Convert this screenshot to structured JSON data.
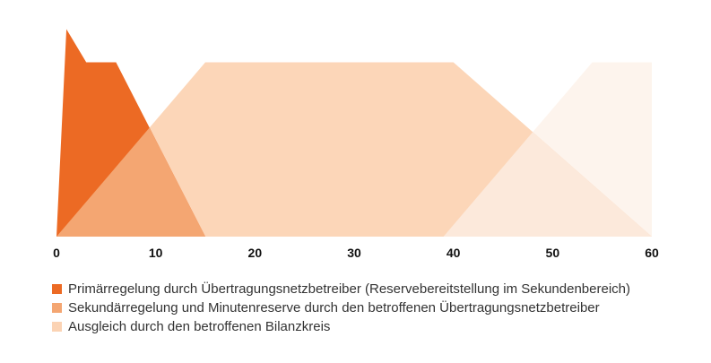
{
  "chart_data": {
    "type": "area",
    "title": "",
    "xlabel": "",
    "ylabel": "",
    "xlim": [
      0,
      60
    ],
    "x_ticks": [
      "0",
      "10",
      "20",
      "30",
      "40",
      "50",
      "60"
    ],
    "y_axis_shown": false,
    "grid": false,
    "legend_position": "bottom",
    "series": [
      {
        "name": "Primärregelung durch Übertragungsnetzbetreiber (Reservebereitstellung im Sekundenbereich)",
        "color": "#EC6A24",
        "points": [
          [
            0,
            0
          ],
          [
            1,
            119
          ],
          [
            3,
            100
          ],
          [
            6,
            100
          ],
          [
            15,
            0
          ]
        ]
      },
      {
        "name": "Sekundärregelung und Minutenreserve durch den betroffenen Übertragungsnetzbetreiber",
        "color": "#F4A672",
        "points": [
          [
            0,
            0
          ],
          [
            15,
            100
          ],
          [
            40,
            100
          ],
          [
            60,
            0
          ]
        ]
      },
      {
        "name": "Ausgleich durch den betroffenen Bilanzkreis",
        "color": "#FBD3B4",
        "points": [
          [
            39,
            0
          ],
          [
            54,
            100
          ],
          [
            60,
            100
          ],
          [
            60,
            0
          ]
        ]
      }
    ],
    "render_colors": {
      "primary": "#EC6A24",
      "primary_secondary_overlap": "#F4A672",
      "secondary": "#FCD6B8",
      "balancing": "#FDF4ED",
      "secondary_balancing_overlap": "#FCE9DB"
    }
  }
}
